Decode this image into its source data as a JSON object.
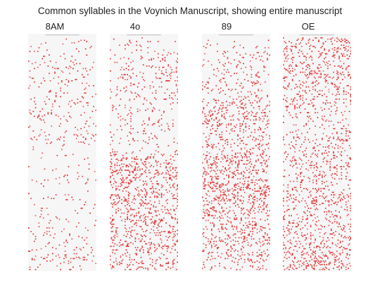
{
  "chart_data": {
    "type": "scatter",
    "title": "Common syllables in the Voynich Manuscript, showing entire manuscript",
    "panel_kind": "dot-density strip per syllable",
    "dot_color": "#e02020",
    "background_color": "#f6f6f6",
    "panels": [
      {
        "label": "8AM",
        "density_profile": [
          0.05,
          0.06,
          0.1,
          0.09,
          0.12,
          0.1,
          0.08,
          0.05,
          0.04,
          0.05,
          0.04,
          0.05,
          0.06,
          0.07,
          0.08,
          0.09
        ]
      },
      {
        "label": "4o",
        "density_profile": [
          0.08,
          0.12,
          0.15,
          0.12,
          0.12,
          0.1,
          0.09,
          0.08,
          0.3,
          0.32,
          0.3,
          0.28,
          0.27,
          0.26,
          0.25,
          0.24
        ]
      },
      {
        "label": "89",
        "density_profile": [
          0.08,
          0.1,
          0.12,
          0.14,
          0.22,
          0.26,
          0.24,
          0.2,
          0.3,
          0.32,
          0.34,
          0.3,
          0.25,
          0.23,
          0.22,
          0.2
        ]
      },
      {
        "label": "OE",
        "density_profile": [
          0.25,
          0.22,
          0.24,
          0.2,
          0.18,
          0.14,
          0.16,
          0.18,
          0.2,
          0.18,
          0.2,
          0.22,
          0.2,
          0.24,
          0.28,
          0.3
        ]
      }
    ]
  }
}
